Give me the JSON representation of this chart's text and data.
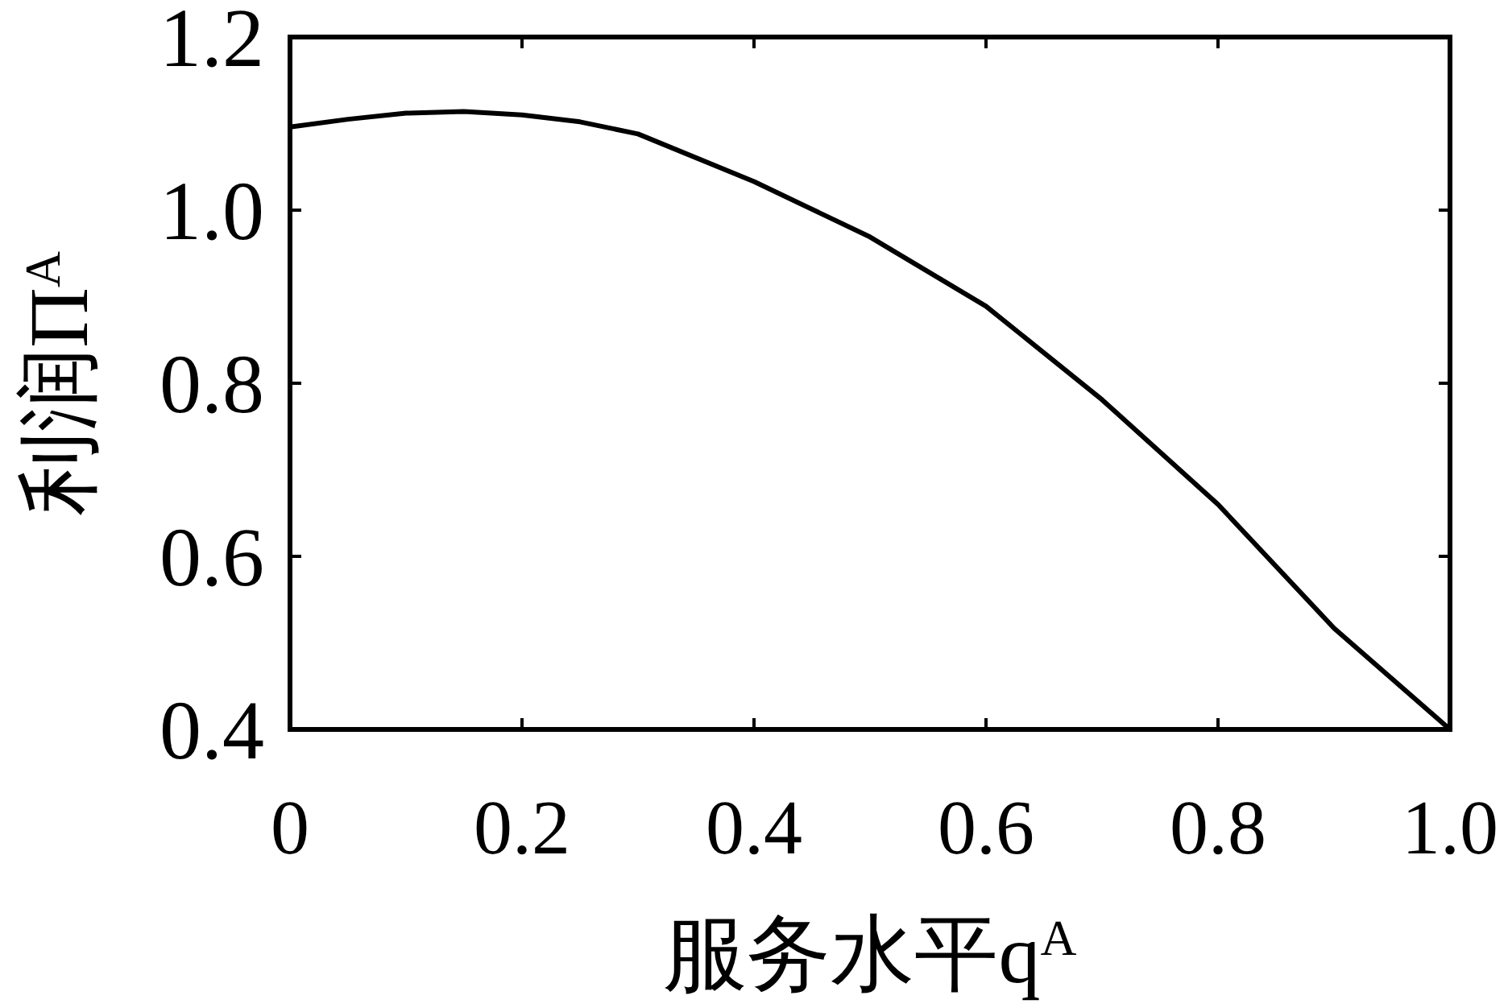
{
  "chart_data": {
    "type": "line",
    "xlabel": "服务水平q$^{A}$",
    "ylabel": "利润Π$^{A}$",
    "x": [
      0,
      0.05,
      0.1,
      0.15,
      0.2,
      0.25,
      0.3,
      0.4,
      0.5,
      0.6,
      0.7,
      0.8,
      0.9,
      1.0
    ],
    "series": [
      {
        "color": "#000000",
        "values": [
          1.096,
          1.105,
          1.112,
          1.114,
          1.11,
          1.102,
          1.088,
          1.033,
          0.969,
          0.889,
          0.781,
          0.66,
          0.517,
          0.4
        ]
      }
    ],
    "xlim": [
      0,
      1
    ],
    "ylim": [
      0.4,
      1.2
    ],
    "xticks": [
      0,
      0.2,
      0.4,
      0.6,
      0.8,
      {
        "value": 1,
        "label": "1.0"
      }
    ],
    "yticks": [
      0.4,
      0.6,
      0.8,
      {
        "value": 1,
        "label": "1.0"
      },
      1.2
    ],
    "grid": false,
    "marker": "none",
    "line_style": "solid"
  }
}
